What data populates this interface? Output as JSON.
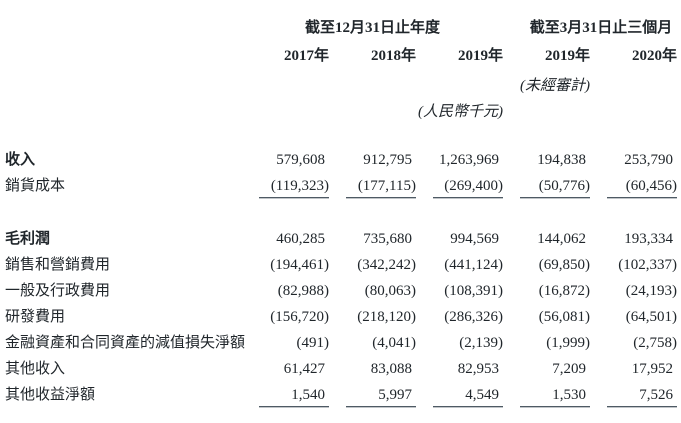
{
  "colors": {
    "text": "#20262b",
    "rule": "#4e5a64"
  },
  "table": {
    "column_groups": [
      {
        "label": "截至12月31日止年度",
        "columns": [
          "2017年",
          "2018年",
          "2019年"
        ]
      },
      {
        "label": "截至3月31日止三個月",
        "columns": [
          "2019年",
          "2020年"
        ]
      }
    ],
    "notes": {
      "unaudited": "(未經審計)",
      "currency_unit": "(人民幣千元)"
    },
    "rows": [
      {
        "label": "收入",
        "emphasis": true,
        "rule_below": false,
        "values": [
          "579,608",
          "912,795",
          "1,263,969",
          "194,838",
          "253,790"
        ]
      },
      {
        "label": "銷貨成本",
        "emphasis": false,
        "rule_below": true,
        "values": [
          "(119,323)",
          "(177,115)",
          "(269,400)",
          "(50,776)",
          "(60,456)"
        ]
      },
      {
        "type": "spacer"
      },
      {
        "label": "毛利潤",
        "emphasis": true,
        "rule_below": false,
        "values": [
          "460,285",
          "735,680",
          "994,569",
          "144,062",
          "193,334"
        ]
      },
      {
        "label": "銷售和營銷費用",
        "emphasis": false,
        "rule_below": false,
        "values": [
          "(194,461)",
          "(342,242)",
          "(441,124)",
          "(69,850)",
          "(102,337)"
        ]
      },
      {
        "label": "一般及行政費用",
        "emphasis": false,
        "rule_below": false,
        "values": [
          "(82,988)",
          "(80,063)",
          "(108,391)",
          "(16,872)",
          "(24,193)"
        ]
      },
      {
        "label": "研發費用",
        "emphasis": false,
        "rule_below": false,
        "values": [
          "(156,720)",
          "(218,120)",
          "(286,326)",
          "(56,081)",
          "(64,501)"
        ]
      },
      {
        "label": "金融資產和合同資產的減值損失淨額",
        "emphasis": false,
        "rule_below": false,
        "values": [
          "(491)",
          "(4,041)",
          "(2,139)",
          "(1,999)",
          "(2,758)"
        ]
      },
      {
        "label": "其他收入",
        "emphasis": false,
        "rule_below": false,
        "values": [
          "61,427",
          "83,088",
          "82,953",
          "7,209",
          "17,952"
        ]
      },
      {
        "label": "其他收益淨額",
        "emphasis": false,
        "rule_below": true,
        "values": [
          "1,540",
          "5,997",
          "4,549",
          "1,530",
          "7,526"
        ]
      }
    ]
  }
}
